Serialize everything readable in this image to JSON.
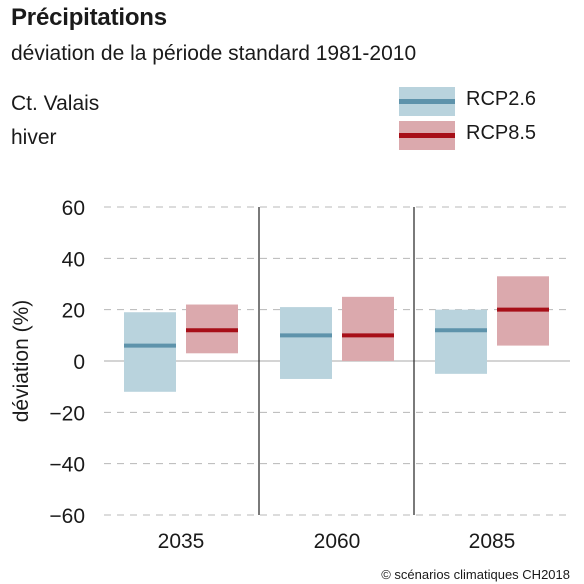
{
  "header": {
    "title": "Précipitations",
    "subtitle": "déviation de la période standard 1981-2010",
    "region": "Ct. Valais",
    "season": "hiver"
  },
  "legend": [
    {
      "label": "RCP2.6",
      "band_color": "#b9d3dd",
      "line_color": "#5e93ab"
    },
    {
      "label": "RCP8.5",
      "band_color": "#dba9ad",
      "line_color": "#a70f18"
    }
  ],
  "credit": "© scénarios climatiques CH2018",
  "chart_data": {
    "type": "bar",
    "title": "Précipitations",
    "subtitle": "déviation de la période standard 1981-2010",
    "xlabel": "",
    "ylabel": "déviation (%)",
    "categories": [
      "2035",
      "2060",
      "2085"
    ],
    "ylim": [
      -60,
      60
    ],
    "yticks": [
      60,
      40,
      20,
      0,
      -20,
      -40,
      -60
    ],
    "yticklabels": [
      "60",
      "40",
      "20",
      "0",
      "−20",
      "−40",
      "−60"
    ],
    "grid": true,
    "legend_position": "top-right",
    "series": [
      {
        "name": "RCP2.6",
        "color": "#5e93ab",
        "band_color": "#b9d3dd",
        "median": [
          6,
          10,
          12
        ],
        "low": [
          -12,
          -7,
          -5
        ],
        "high": [
          19,
          21,
          20
        ]
      },
      {
        "name": "RCP8.5",
        "color": "#a70f18",
        "band_color": "#dba9ad",
        "median": [
          12,
          10,
          20
        ],
        "low": [
          3,
          0,
          6
        ],
        "high": [
          22,
          25,
          33
        ]
      }
    ]
  }
}
